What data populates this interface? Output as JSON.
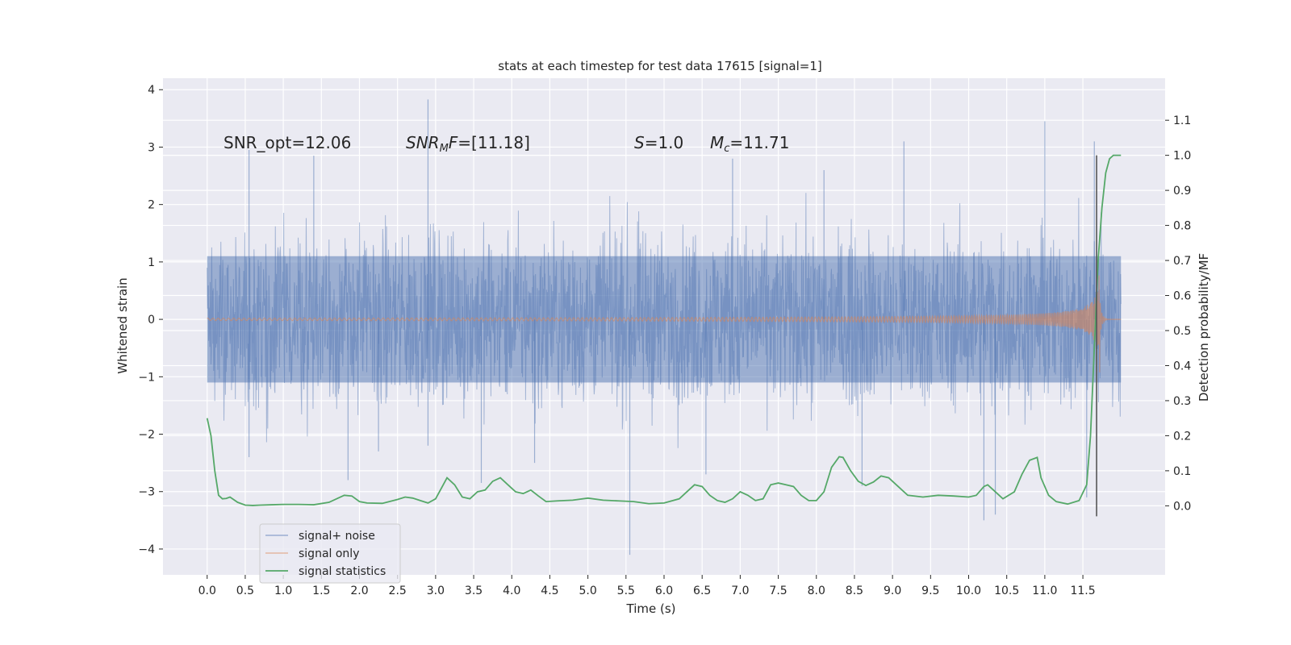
{
  "chart_data": {
    "type": "line",
    "title": "stats at each timestep for test data 17615 [signal=1]",
    "xlabel": "Time (s)",
    "ylabel_left": "Whitened strain",
    "ylabel_right": "Detection probability/MF",
    "xlim": [
      -0.58,
      12.58
    ],
    "ylim_left": [
      -4.45,
      4.2
    ],
    "ylim_right": [
      -0.197,
      1.22
    ],
    "x_ticks": [
      0.0,
      0.5,
      1.0,
      1.5,
      2.0,
      2.5,
      3.0,
      3.5,
      4.0,
      4.5,
      5.0,
      5.5,
      6.0,
      6.5,
      7.0,
      7.5,
      8.0,
      8.5,
      9.0,
      9.5,
      10.0,
      10.5,
      11.0,
      11.5
    ],
    "x_tick_labels": [
      "0.0",
      "0.5",
      "1.0",
      "1.5",
      "2.0",
      "2.5",
      "3.0",
      "3.5",
      "4.0",
      "4.5",
      "5.0",
      "5.5",
      "6.0",
      "6.5",
      "7.0",
      "7.5",
      "8.0",
      "8.5",
      "9.0",
      "9.5",
      "10.0",
      "10.5",
      "11.0",
      "11.5"
    ],
    "y_left_ticks": [
      -4,
      -3,
      -2,
      -1,
      0,
      1,
      2,
      3,
      4
    ],
    "y_left_tick_labels": [
      "−4",
      "−3",
      "−2",
      "−1",
      "0",
      "1",
      "2",
      "3",
      "4"
    ],
    "y_right_ticks": [
      0.0,
      0.1,
      0.2,
      0.3,
      0.4,
      0.5,
      0.6,
      0.7,
      0.8,
      0.9,
      1.0,
      1.1
    ],
    "y_right_tick_labels": [
      "0.0",
      "0.1",
      "0.2",
      "0.3",
      "0.4",
      "0.5",
      "0.6",
      "0.7",
      "0.8",
      "0.9",
      "1.0",
      "1.1"
    ],
    "annotations": {
      "snr_opt": "SNR_opt=12.06",
      "snr_mf_main": "SNR",
      "snr_mf_sub": "M",
      "snr_mf_rest": "F=[11.18]",
      "s_main": "S",
      "s_rest": "=1.0",
      "mc_main": "M",
      "mc_sub": "c",
      "mc_rest": "=11.71"
    },
    "vline": {
      "x": 11.68,
      "y_range": [
        -0.03,
        1.0
      ],
      "axis": "right"
    },
    "series": [
      {
        "name": "signal+ noise",
        "color": "#4c72b0",
        "style": "noise",
        "x_range": [
          0.0,
          12.0
        ],
        "core_amplitude": 1.1,
        "spikes": [
          {
            "x": 0.55,
            "y": 2.95
          },
          {
            "x": 0.55,
            "y": -2.4
          },
          {
            "x": 1.4,
            "y": 2.85
          },
          {
            "x": 1.85,
            "y": -2.8
          },
          {
            "x": 2.25,
            "y": -2.3
          },
          {
            "x": 2.9,
            "y": 3.83
          },
          {
            "x": 2.9,
            "y": -2.2
          },
          {
            "x": 3.6,
            "y": -2.85
          },
          {
            "x": 4.3,
            "y": -2.5
          },
          {
            "x": 5.55,
            "y": -4.1
          },
          {
            "x": 6.55,
            "y": -2.7
          },
          {
            "x": 6.9,
            "y": 2.8
          },
          {
            "x": 8.1,
            "y": 2.6
          },
          {
            "x": 8.6,
            "y": -2.9
          },
          {
            "x": 9.15,
            "y": 3.1
          },
          {
            "x": 10.2,
            "y": -3.5
          },
          {
            "x": 10.35,
            "y": -3.4
          },
          {
            "x": 11.0,
            "y": 3.45
          },
          {
            "x": 11.55,
            "y": -3.1
          },
          {
            "x": 11.65,
            "y": 3.1
          }
        ]
      },
      {
        "name": "signal only",
        "color": "#dd8452",
        "style": "chirp",
        "x_range": [
          0.0,
          12.0
        ],
        "merger_time": 11.72,
        "peak_amplitude": 1.55
      },
      {
        "name": "signal statistics",
        "color": "#55a868",
        "axis": "right",
        "x": [
          0.0,
          0.05,
          0.1,
          0.15,
          0.2,
          0.25,
          0.3,
          0.4,
          0.5,
          0.6,
          0.7,
          0.85,
          1.0,
          1.2,
          1.4,
          1.6,
          1.8,
          1.9,
          2.0,
          2.1,
          2.3,
          2.5,
          2.6,
          2.7,
          2.8,
          2.9,
          3.0,
          3.1,
          3.15,
          3.25,
          3.35,
          3.45,
          3.55,
          3.65,
          3.75,
          3.85,
          3.95,
          4.05,
          4.15,
          4.25,
          4.35,
          4.45,
          4.6,
          4.8,
          5.0,
          5.2,
          5.4,
          5.6,
          5.8,
          6.0,
          6.2,
          6.3,
          6.4,
          6.5,
          6.6,
          6.7,
          6.8,
          6.9,
          7.0,
          7.1,
          7.2,
          7.3,
          7.4,
          7.5,
          7.6,
          7.7,
          7.8,
          7.9,
          8.0,
          8.1,
          8.2,
          8.3,
          8.35,
          8.45,
          8.55,
          8.65,
          8.75,
          8.85,
          8.95,
          9.05,
          9.2,
          9.4,
          9.6,
          9.8,
          10.0,
          10.1,
          10.2,
          10.25,
          10.35,
          10.45,
          10.6,
          10.7,
          10.8,
          10.9,
          10.95,
          11.05,
          11.15,
          11.3,
          11.45,
          11.55,
          11.6,
          11.65,
          11.7,
          11.75,
          11.8,
          11.85,
          11.9,
          11.95,
          12.0
        ],
        "y": [
          0.25,
          0.2,
          0.1,
          0.03,
          0.02,
          0.021,
          0.025,
          0.01,
          0.002,
          0.001,
          0.002,
          0.003,
          0.004,
          0.004,
          0.003,
          0.01,
          0.03,
          0.028,
          0.012,
          0.008,
          0.007,
          0.018,
          0.025,
          0.022,
          0.015,
          0.008,
          0.02,
          0.06,
          0.08,
          0.06,
          0.025,
          0.02,
          0.04,
          0.045,
          0.07,
          0.08,
          0.06,
          0.04,
          0.035,
          0.045,
          0.028,
          0.012,
          0.014,
          0.016,
          0.022,
          0.016,
          0.014,
          0.012,
          0.006,
          0.008,
          0.02,
          0.04,
          0.06,
          0.055,
          0.03,
          0.015,
          0.01,
          0.02,
          0.04,
          0.03,
          0.015,
          0.02,
          0.06,
          0.065,
          0.06,
          0.055,
          0.03,
          0.015,
          0.015,
          0.04,
          0.11,
          0.14,
          0.138,
          0.1,
          0.07,
          0.058,
          0.068,
          0.085,
          0.08,
          0.06,
          0.03,
          0.025,
          0.03,
          0.028,
          0.025,
          0.03,
          0.055,
          0.06,
          0.04,
          0.02,
          0.04,
          0.09,
          0.13,
          0.138,
          0.08,
          0.03,
          0.012,
          0.005,
          0.015,
          0.06,
          0.2,
          0.45,
          0.7,
          0.85,
          0.95,
          0.99,
          1.0,
          1.0,
          1.0
        ]
      }
    ],
    "legend": [
      {
        "label": "signal+ noise",
        "color": "#4c72b0"
      },
      {
        "label": "signal only",
        "color": "#dd8452"
      },
      {
        "label": "signal statistics",
        "color": "#55a868"
      }
    ],
    "legend_position": "lower-left",
    "grid": true,
    "background_color": "#eaeaf2"
  }
}
